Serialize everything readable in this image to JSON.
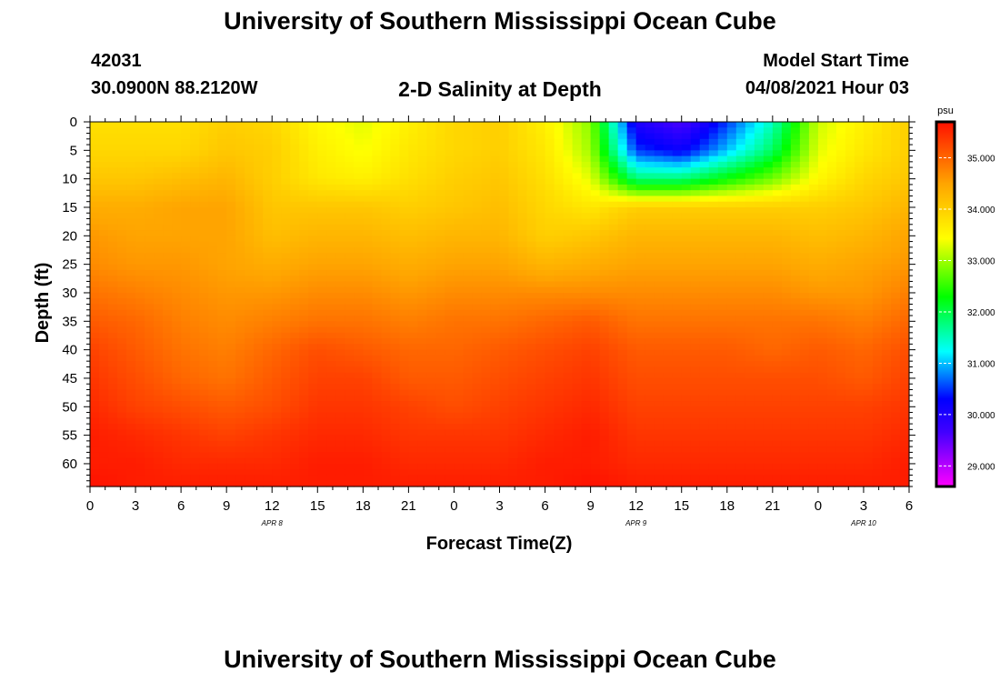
{
  "page": {
    "title_top": "University of Southern Mississippi Ocean Cube",
    "title_bottom": "University of Southern Mississippi Ocean Cube",
    "station_id": "42031",
    "coords": "30.0900N  88.2120W",
    "plot_title": "2-D Salinity at Depth",
    "model_start_label": "Model Start Time",
    "model_start_value": "04/08/2021 Hour 03"
  },
  "colors": {
    "ramp": [
      "#ff00ff",
      "#8000ff",
      "#0000ff",
      "#00ffff",
      "#00ff00",
      "#ffff00",
      "#ffa500",
      "#ff2000"
    ]
  },
  "chart_data": {
    "type": "heatmap",
    "title": "2-D Salinity at Depth",
    "xlabel": "Forecast Time(Z)",
    "ylabel": "Depth (ft)",
    "x_hours": [
      0,
      3,
      6,
      9,
      12,
      15,
      18,
      21,
      24,
      27,
      30,
      33,
      36,
      39,
      42,
      45,
      48,
      51,
      54
    ],
    "x_tick_labels": [
      "0",
      "3",
      "6",
      "9",
      "12",
      "15",
      "18",
      "21",
      "0",
      "3",
      "6",
      "9",
      "12",
      "15",
      "18",
      "21",
      "0",
      "3",
      "6"
    ],
    "date_labels": [
      {
        "text": "APR 8",
        "hour": 12
      },
      {
        "text": "APR 9",
        "hour": 36
      },
      {
        "text": "APR 10",
        "hour": 51
      }
    ],
    "y_depths_ft": [
      0,
      5,
      10,
      15,
      20,
      25,
      30,
      35,
      40,
      45,
      50,
      55,
      60
    ],
    "y_tick_labels": [
      "0",
      "5",
      "10",
      "15",
      "20",
      "25",
      "30",
      "35",
      "40",
      "45",
      "50",
      "55",
      "60"
    ],
    "xlim": [
      0,
      54
    ],
    "ylim": [
      0,
      64
    ],
    "colorbar": {
      "unit": "psu",
      "min": 28.6,
      "max": 35.7,
      "tick_values": [
        35,
        34,
        33,
        32,
        31,
        30,
        29
      ],
      "tick_labels": [
        "35.000",
        "34.000",
        "33.000",
        "32.000",
        "31.000",
        "30.000",
        "29.000"
      ]
    },
    "values_psu": [
      [
        33.8,
        33.8,
        33.8,
        34.0,
        33.9,
        33.5,
        33.3,
        33.6,
        33.9,
        34.0,
        33.6,
        32.9,
        30.0,
        29.6,
        30.5,
        31.5,
        33.2,
        33.6,
        34.0
      ],
      [
        33.9,
        33.9,
        33.9,
        34.1,
        34.0,
        33.6,
        33.4,
        33.7,
        33.9,
        34.0,
        33.7,
        33.0,
        30.5,
        30.2,
        31.0,
        31.9,
        33.3,
        33.7,
        34.0
      ],
      [
        34.1,
        34.1,
        34.2,
        34.3,
        34.0,
        33.7,
        33.6,
        33.8,
        34.0,
        34.1,
        33.8,
        33.3,
        31.8,
        31.8,
        32.3,
        32.8,
        33.5,
        33.9,
        34.1
      ],
      [
        34.4,
        34.4,
        34.5,
        34.5,
        34.1,
        34.1,
        34.1,
        34.0,
        34.1,
        34.2,
        33.9,
        33.7,
        34.0,
        34.0,
        34.0,
        34.0,
        34.0,
        34.1,
        34.3
      ],
      [
        34.6,
        34.5,
        34.5,
        34.5,
        34.2,
        34.3,
        34.3,
        34.2,
        34.3,
        34.3,
        34.0,
        34.1,
        34.3,
        34.3,
        34.3,
        34.3,
        34.2,
        34.3,
        34.5
      ],
      [
        34.7,
        34.6,
        34.6,
        34.5,
        34.4,
        34.5,
        34.5,
        34.4,
        34.5,
        34.5,
        34.3,
        34.4,
        34.5,
        34.5,
        34.5,
        34.5,
        34.4,
        34.5,
        34.6
      ],
      [
        34.9,
        34.8,
        34.7,
        34.6,
        34.6,
        34.7,
        34.7,
        34.6,
        34.7,
        34.7,
        34.7,
        34.7,
        34.7,
        34.7,
        34.7,
        34.7,
        34.6,
        34.6,
        34.8
      ],
      [
        35.1,
        35.0,
        34.8,
        34.7,
        34.8,
        34.9,
        34.9,
        34.8,
        34.9,
        34.9,
        35.0,
        35.1,
        34.9,
        34.9,
        34.9,
        34.9,
        34.9,
        34.8,
        35.0
      ],
      [
        35.3,
        35.1,
        34.9,
        34.8,
        35.0,
        35.2,
        35.1,
        35.0,
        35.0,
        35.1,
        35.2,
        35.3,
        35.1,
        35.1,
        35.1,
        35.0,
        35.1,
        35.0,
        35.2
      ],
      [
        35.4,
        35.2,
        35.0,
        34.9,
        35.1,
        35.3,
        35.3,
        35.1,
        35.1,
        35.2,
        35.3,
        35.4,
        35.2,
        35.2,
        35.2,
        35.2,
        35.2,
        35.1,
        35.3
      ],
      [
        35.5,
        35.3,
        35.2,
        35.1,
        35.2,
        35.4,
        35.4,
        35.3,
        35.2,
        35.3,
        35.4,
        35.5,
        35.3,
        35.3,
        35.3,
        35.3,
        35.3,
        35.3,
        35.4
      ],
      [
        35.6,
        35.5,
        35.4,
        35.3,
        35.4,
        35.5,
        35.5,
        35.4,
        35.4,
        35.4,
        35.5,
        35.6,
        35.4,
        35.4,
        35.4,
        35.4,
        35.4,
        35.4,
        35.5
      ],
      [
        35.6,
        35.6,
        35.5,
        35.5,
        35.5,
        35.6,
        35.6,
        35.5,
        35.5,
        35.5,
        35.6,
        35.6,
        35.5,
        35.5,
        35.5,
        35.5,
        35.5,
        35.5,
        35.6
      ],
      [
        35.7,
        35.6,
        35.6,
        35.6,
        35.6,
        35.6,
        35.6,
        35.6,
        35.6,
        35.6,
        35.6,
        35.7,
        35.6,
        35.6,
        35.6,
        35.6,
        35.6,
        35.6,
        35.6
      ]
    ],
    "value_depths_ft": [
      0,
      5,
      10,
      15,
      20,
      25,
      30,
      35,
      40,
      45,
      50,
      55,
      60,
      64
    ]
  }
}
